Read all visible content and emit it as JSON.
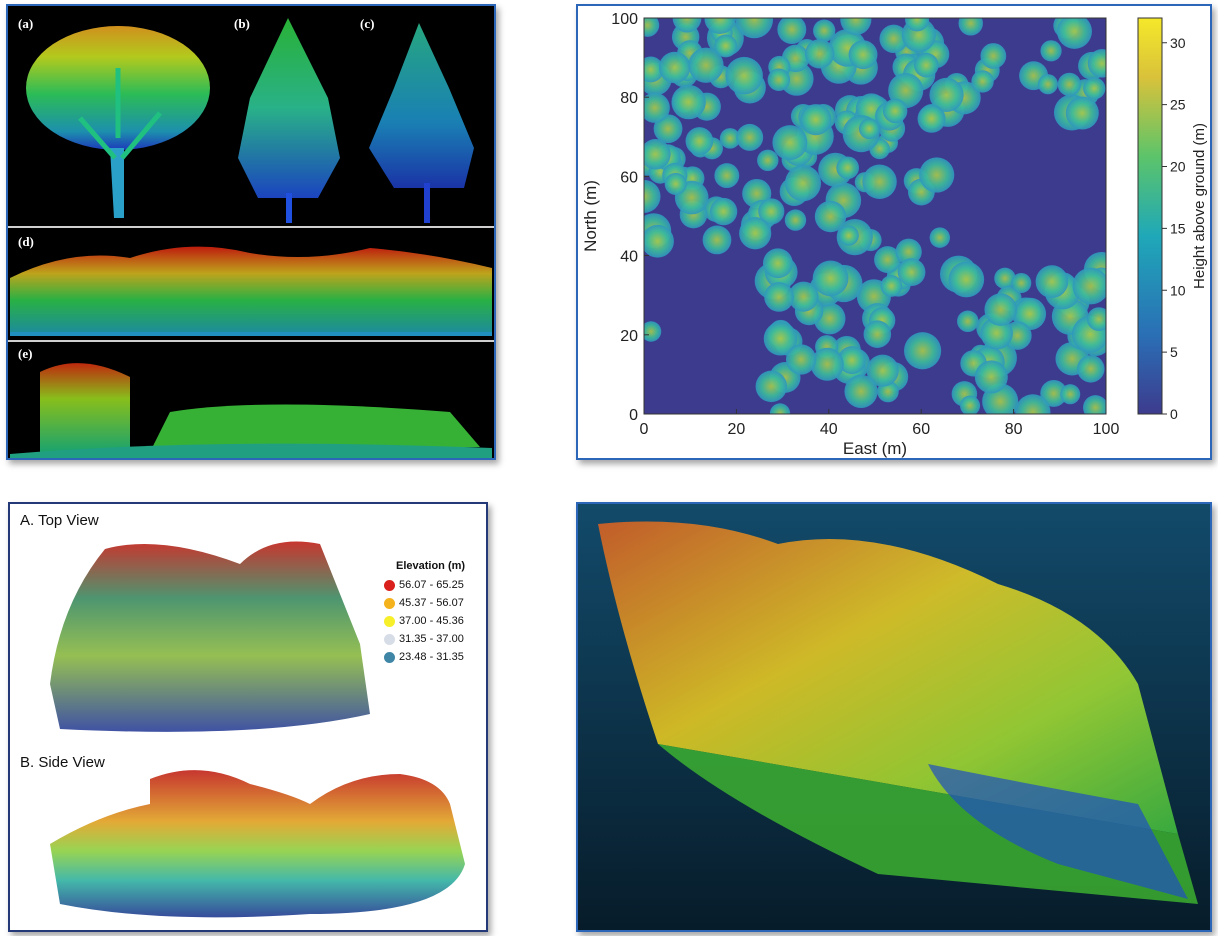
{
  "panel1": {
    "labels": [
      "(a)",
      "(b)",
      "(c)",
      "(d)",
      "(e)"
    ]
  },
  "chart": {
    "xlabel": "East (m)",
    "ylabel": "North (m)",
    "colorbar_label": "Height above ground (m)",
    "x_ticks": [
      "0",
      "20",
      "40",
      "60",
      "80",
      "100"
    ],
    "y_ticks": [
      "0",
      "20",
      "40",
      "60",
      "80",
      "100"
    ],
    "cb_ticks": [
      "0",
      "5",
      "10",
      "15",
      "20",
      "25",
      "30"
    ],
    "background_color": "#3d3b8e"
  },
  "chart_data": {
    "type": "heatmap",
    "xlabel": "East (m)",
    "ylabel": "North (m)",
    "xlim": [
      0,
      100
    ],
    "ylim": [
      0,
      100
    ],
    "colorbar": {
      "label": "Height above ground (m)",
      "range": [
        0,
        32
      ],
      "ticks": [
        0,
        5,
        10,
        15,
        20,
        25,
        30
      ]
    }
  },
  "panel3": {
    "top_view_title": "A. Top View",
    "side_view_title": "B. Side View",
    "legend_title": "Elevation (m)",
    "legend": [
      {
        "range": "56.07 - 65.25",
        "color": "#d9201c"
      },
      {
        "range": "45.37 - 56.07",
        "color": "#f4b21c"
      },
      {
        "range": "37.00 - 45.36",
        "color": "#f6ef2a"
      },
      {
        "range": "31.35 - 37.00",
        "color": "#d7dde6"
      },
      {
        "range": "23.48 - 31.35",
        "color": "#3f86a6"
      }
    ]
  }
}
